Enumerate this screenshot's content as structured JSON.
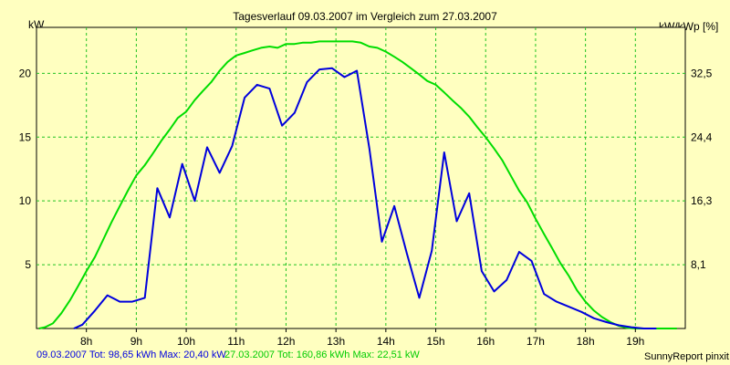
{
  "chart_data": {
    "type": "line",
    "title": "Tagesverlauf 09.03.2007 im Vergleich zum 27.03.2007",
    "ylabel_left": "kW",
    "ylabel_right": "kW/kWp [%]",
    "x_ticks": [
      "8h",
      "9h",
      "10h",
      "11h",
      "12h",
      "13h",
      "14h",
      "15h",
      "16h",
      "17h",
      "18h",
      "19h"
    ],
    "y_ticks_left": [
      "5",
      "10",
      "15",
      "20"
    ],
    "y_ticks_right": [
      "8,1",
      "16,3",
      "24,4",
      "32,5"
    ],
    "xlim": [
      7.0,
      20.0
    ],
    "ylim": [
      0,
      23.6
    ],
    "grid": true,
    "series": [
      {
        "name": "09.03.2007",
        "color": "#0000dd",
        "x": [
          7.75,
          7.92,
          8.17,
          8.42,
          8.67,
          8.92,
          9.17,
          9.42,
          9.67,
          9.92,
          10.17,
          10.42,
          10.67,
          10.92,
          11.17,
          11.42,
          11.67,
          11.92,
          12.17,
          12.42,
          12.67,
          12.92,
          13.17,
          13.42,
          13.67,
          13.92,
          14.17,
          14.42,
          14.67,
          14.92,
          15.17,
          15.42,
          15.67,
          15.92,
          16.17,
          16.42,
          16.67,
          16.92,
          17.17,
          17.42,
          17.67,
          17.92,
          18.17,
          18.42,
          18.67,
          18.92,
          19.17,
          19.42
        ],
        "y": [
          0.0,
          0.3,
          1.4,
          2.6,
          2.1,
          2.1,
          2.4,
          11.0,
          8.7,
          12.9,
          10.0,
          14.2,
          12.2,
          14.3,
          18.1,
          19.1,
          18.8,
          15.9,
          16.9,
          19.3,
          20.3,
          20.4,
          19.7,
          20.2,
          14.1,
          6.8,
          9.6,
          5.9,
          2.4,
          6.1,
          13.8,
          8.4,
          10.6,
          4.5,
          2.9,
          3.8,
          6.0,
          5.3,
          2.7,
          2.1,
          1.7,
          1.3,
          0.8,
          0.5,
          0.25,
          0.1,
          0.0,
          0.0
        ]
      },
      {
        "name": "27.03.2007",
        "color": "#00dd00",
        "x": [
          7.05,
          7.17,
          7.33,
          7.5,
          7.67,
          7.83,
          8.0,
          8.17,
          8.33,
          8.5,
          8.67,
          8.83,
          9.0,
          9.17,
          9.33,
          9.5,
          9.67,
          9.83,
          10.0,
          10.17,
          10.33,
          10.5,
          10.67,
          10.83,
          11.0,
          11.17,
          11.33,
          11.5,
          11.67,
          11.83,
          12.0,
          12.17,
          12.33,
          12.5,
          12.67,
          12.83,
          13.0,
          13.17,
          13.33,
          13.5,
          13.67,
          13.83,
          14.0,
          14.17,
          14.33,
          14.5,
          14.67,
          14.83,
          15.0,
          15.17,
          15.33,
          15.5,
          15.67,
          15.83,
          16.0,
          16.17,
          16.33,
          16.5,
          16.67,
          16.83,
          17.0,
          17.17,
          17.33,
          17.5,
          17.67,
          17.83,
          18.0,
          18.17,
          18.33,
          18.5,
          18.67,
          18.83,
          19.0,
          19.17,
          19.33,
          19.5,
          19.67,
          19.83
        ],
        "y": [
          0.0,
          0.1,
          0.4,
          1.2,
          2.2,
          3.3,
          4.5,
          5.6,
          6.9,
          8.3,
          9.6,
          10.8,
          12.0,
          12.8,
          13.7,
          14.7,
          15.6,
          16.5,
          17.0,
          17.9,
          18.6,
          19.3,
          20.2,
          20.9,
          21.4,
          21.6,
          21.8,
          22.0,
          22.1,
          22.0,
          22.3,
          22.3,
          22.4,
          22.4,
          22.5,
          22.5,
          22.5,
          22.5,
          22.5,
          22.4,
          22.1,
          22.0,
          21.7,
          21.3,
          20.9,
          20.4,
          19.9,
          19.4,
          19.1,
          18.5,
          17.9,
          17.3,
          16.6,
          15.8,
          15.0,
          14.1,
          13.2,
          12.0,
          10.8,
          9.9,
          8.6,
          7.4,
          6.3,
          5.1,
          4.1,
          3.0,
          2.1,
          1.4,
          0.9,
          0.5,
          0.2,
          0.05,
          0.0,
          0.0,
          0.0,
          0.0,
          0.0,
          0.0
        ]
      }
    ]
  },
  "footer": {
    "blue_summary": "09.03.2007 Tot: 98,65 kWh Max: 20,40 kW",
    "green_summary": "27.03.2007 Tot: 160,86 kWh Max: 22,51 kW",
    "credit": "SunnyReport pinxit"
  }
}
